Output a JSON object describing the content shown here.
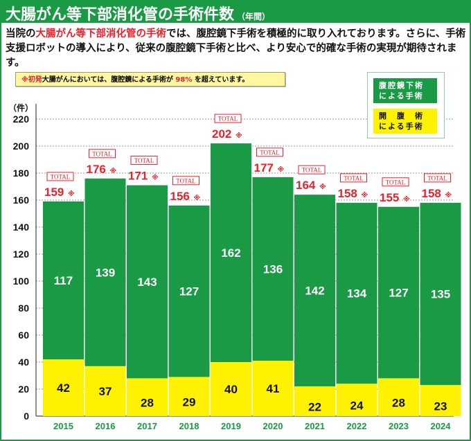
{
  "header": {
    "title": "大腸がん等下部消化管の手術件数",
    "title_suffix": "（年間）"
  },
  "intro": {
    "prefix": "当院の",
    "highlight": "大腸がん等下部消化管の手術",
    "rest": "では、腹腔鏡下手術を積極的に取り入れております。さらに、手術支援ロボットの導入により、従来の腹腔鏡下手術と比べ、より安心で的確な手術の実現が期待されます。"
  },
  "note": {
    "mark": "※",
    "red_word": "初発",
    "text_a": "大腸がんにおいては、腹腔鏡による手術が ",
    "pct": "98%",
    "text_b": " を超えています。"
  },
  "legend": {
    "laparoscopic_line1": "腹腔鏡下術",
    "laparoscopic_line2": "による手術",
    "open_line1": "開　腹　術",
    "open_line2": "による手術"
  },
  "colors": {
    "green": "#1a9a45",
    "yellow": "#fff200",
    "red": "#e8212b"
  },
  "chart_data": {
    "type": "bar",
    "stacked": true,
    "title": "大腸がん等下部消化管の手術件数",
    "ylabel": "（件）",
    "xlabel": "",
    "ylim": [
      0,
      220
    ],
    "yticks": [
      0,
      20,
      40,
      60,
      80,
      100,
      120,
      140,
      160,
      180,
      200,
      220
    ],
    "grid": true,
    "legend_position": "top-right",
    "categories": [
      "2015",
      "2016",
      "2017",
      "2018",
      "2019",
      "2020",
      "2021",
      "2022",
      "2023",
      "2024"
    ],
    "series": [
      {
        "name": "開腹術による手術",
        "values": [
          42,
          37,
          28,
          29,
          40,
          41,
          22,
          24,
          28,
          23
        ]
      },
      {
        "name": "腹腔鏡下術による手術",
        "values": [
          117,
          139,
          143,
          127,
          162,
          136,
          142,
          134,
          127,
          135
        ]
      }
    ],
    "totals": [
      159,
      176,
      171,
      156,
      202,
      177,
      164,
      158,
      155,
      158
    ],
    "total_label": "TOTAL",
    "total_mark": "※"
  }
}
